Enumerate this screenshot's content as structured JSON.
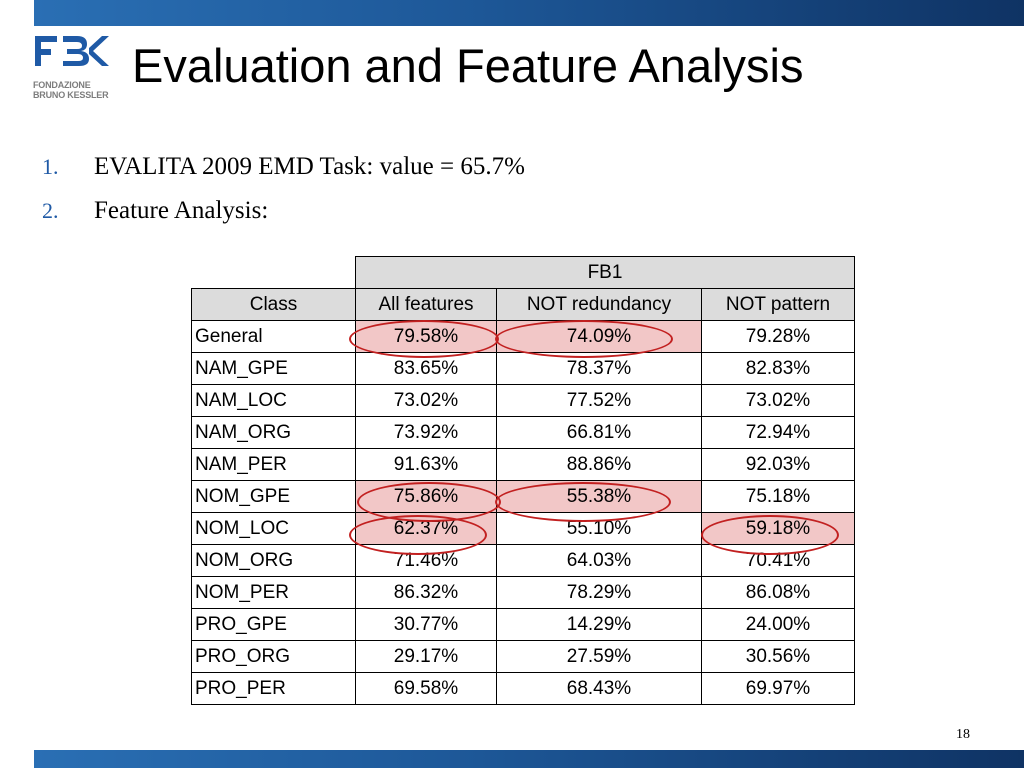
{
  "slide": {
    "title": "Evaluation and Feature Analysis",
    "page_number": "18"
  },
  "logo": {
    "mark": "FBK",
    "line1": "FONDAZIONE",
    "line2": "BRUNO KESSLER"
  },
  "bullets": [
    {
      "num": "1.",
      "text": "EVALITA 2009 EMD Task: value = 65.7%"
    },
    {
      "num": "2.",
      "text": "Feature Analysis:"
    }
  ],
  "table": {
    "group_header": "FB1",
    "headers": [
      "Class",
      "All features",
      "NOT redundancy",
      "NOT pattern"
    ],
    "rows": [
      [
        "General",
        "79.58%",
        "74.09%",
        "79.28%"
      ],
      [
        "NAM_GPE",
        "83.65%",
        "78.37%",
        "82.83%"
      ],
      [
        "NAM_LOC",
        "73.02%",
        "77.52%",
        "73.02%"
      ],
      [
        "NAM_ORG",
        "73.92%",
        "66.81%",
        "72.94%"
      ],
      [
        "NAM_PER",
        "91.63%",
        "88.86%",
        "92.03%"
      ],
      [
        "NOM_GPE",
        "75.86%",
        "55.38%",
        "75.18%"
      ],
      [
        "NOM_LOC",
        "62.37%",
        "55.10%",
        "59.18%"
      ],
      [
        "NOM_ORG",
        "71.46%",
        "64.03%",
        "70.41%"
      ],
      [
        "NOM_PER",
        "86.32%",
        "78.29%",
        "86.08%"
      ],
      [
        "PRO_GPE",
        "30.77%",
        "14.29%",
        "24.00%"
      ],
      [
        "PRO_ORG",
        "29.17%",
        "27.59%",
        "30.56%"
      ],
      [
        "PRO_PER",
        "69.58%",
        "68.43%",
        "69.97%"
      ]
    ],
    "highlight_color": "#f2c7c7",
    "circle_color": "#c22020"
  }
}
